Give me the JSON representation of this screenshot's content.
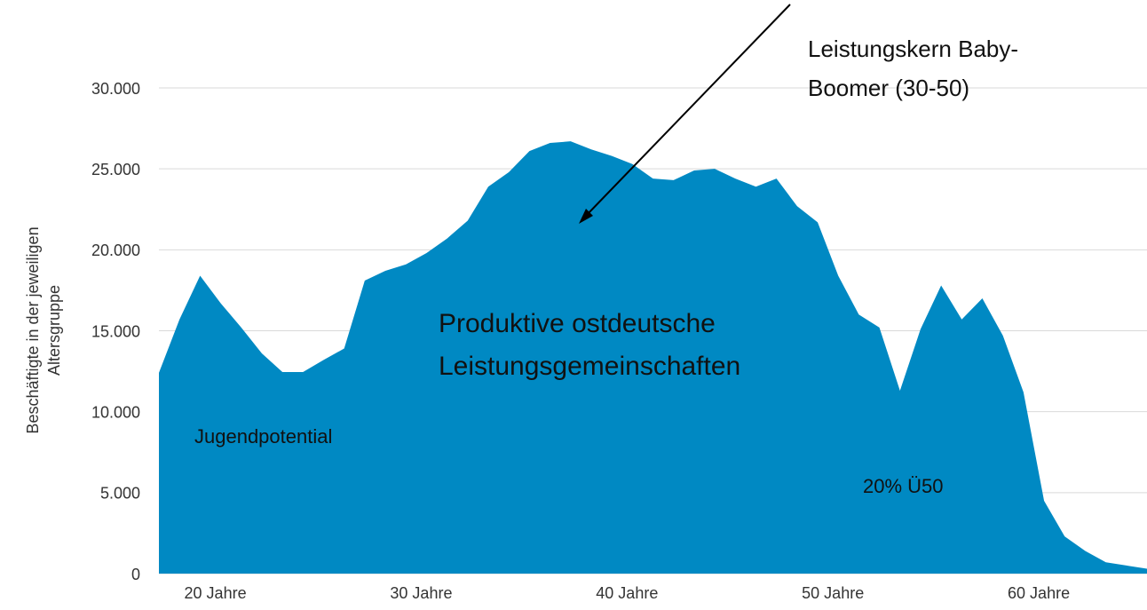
{
  "chart_data": {
    "type": "area",
    "y_label": [
      "Beschäftigte in der jeweiligen",
      "Altersgruppe"
    ],
    "categories": [
      null,
      null,
      null,
      "20 Jahre",
      null,
      null,
      null,
      null,
      null,
      null,
      null,
      null,
      null,
      "30 Jahre",
      null,
      null,
      null,
      null,
      null,
      null,
      null,
      null,
      null,
      "40 Jahre",
      null,
      null,
      null,
      null,
      null,
      null,
      null,
      null,
      null,
      "50 Jahre",
      null,
      null,
      null,
      null,
      null,
      null,
      null,
      null,
      null,
      "60 Jahre",
      null,
      null,
      null,
      null,
      null
    ],
    "values": [
      12400,
      15700,
      18400,
      16700,
      15200,
      13600,
      12450,
      12450,
      13200,
      13900,
      18100,
      18700,
      19100,
      19800,
      20700,
      21800,
      23900,
      24800,
      26100,
      26600,
      26700,
      26200,
      25800,
      25300,
      24400,
      24300,
      24900,
      25000,
      24400,
      23900,
      24400,
      22700,
      21700,
      18400,
      16000,
      15200,
      11300,
      15100,
      17800,
      15700,
      17000,
      14700,
      11200,
      4500,
      2300,
      1400,
      700,
      500,
      300
    ],
    "color": "#0089c3",
    "ylim": [
      0,
      30000
    ],
    "yticks": [
      0,
      {
        "value": 5000,
        "label": "5.000"
      },
      {
        "value": 10000,
        "label": "10.000"
      },
      {
        "value": 15000,
        "label": "15.000"
      },
      {
        "value": 20000,
        "label": "20.000"
      },
      {
        "value": 25000,
        "label": "25.000"
      },
      {
        "value": 30000,
        "label": "30.000"
      }
    ],
    "grid": true,
    "annotations": [
      {
        "lines": [
          "Leistungskern Baby-",
          "Boomer (30-50)"
        ]
      },
      {
        "lines": [
          "Produktive ostdeutsche",
          "Leistungsgemeinschaften"
        ]
      },
      {
        "lines": [
          "Jugendpotential"
        ]
      },
      {
        "lines": [
          "20% Ü50"
        ]
      }
    ]
  }
}
